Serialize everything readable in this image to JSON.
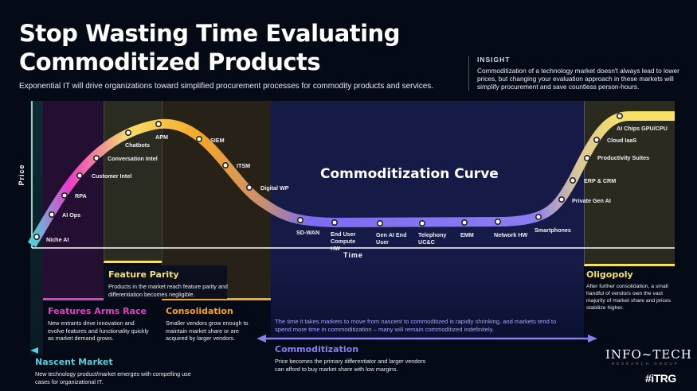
{
  "header": {
    "title_line1": "Stop Wasting Time Evaluating",
    "title_line2": "Commoditized Products",
    "subtitle": "Exponential IT will drive organizations toward simplified procurement processes for commodity products and services."
  },
  "insight": {
    "heading": "INSIGHT",
    "body": "Commoditization of a technology market doesn't always lead to lower prices, but changing your evaluation approach in these markets will simplify procurement and save countless person-hours."
  },
  "chart": {
    "title": "Commoditization Curve",
    "x_label": "Time",
    "y_label": "Price",
    "points": [
      "Niche AI",
      "AI Ops",
      "RPA",
      "Customer Intel",
      "Conversation Intel",
      "Chatbots",
      "APM",
      "SIEM",
      "ITSM",
      "Digital WP",
      "SD-WAN",
      "End User Compute HW",
      "Gen AI End User",
      "Telephony UC&C",
      "EMM",
      "Network HW",
      "Smartphones",
      "Private Gen AI",
      "ERP & CRM",
      "Productivity Suites",
      "Cloud IaaS",
      "AI Chips GPU/CPU"
    ]
  },
  "stages": {
    "nascent": {
      "title": "Nascent Market",
      "desc": "New technology product/market emerges with compelling use cases for organizational IT.",
      "color": "#4fd1d9"
    },
    "arms_race": {
      "title": "Features Arms Race",
      "desc": "New entrants drive innovation and evolve features and functionality quickly as market demand grows.",
      "color": "#e040c0"
    },
    "parity": {
      "title": "Feature Parity",
      "desc": "Products in the market reach feature parity and differentiation becomes negligible.",
      "color": "#f5e06a"
    },
    "consolidation": {
      "title": "Consolidation",
      "desc": "Smaller vendors grow enough to maintain market share or are acquired by larger vendors.",
      "color": "#f5a623"
    },
    "commoditization": {
      "title": "Commoditization",
      "desc": "Price becomes the primary differentiator and larger vendors can afford to buy market share with low margins.",
      "note": "The time it takes markets to move from nascent to commoditized is rapidly shrinking, and markets tend to spend more time in commoditization – many will remain commoditized indefinitely.",
      "color": "#8b7df0"
    },
    "oligopoly": {
      "title": "Oligopoly",
      "desc": "After further consolidation, a small handful of vendors own the vast majority of market share and prices stabilize higher.",
      "color": "#f5e06a"
    }
  },
  "branding": {
    "logo": "INFO~TECH",
    "logo_sub": "RESEARCH GROUP",
    "tag": "#iTRG"
  }
}
